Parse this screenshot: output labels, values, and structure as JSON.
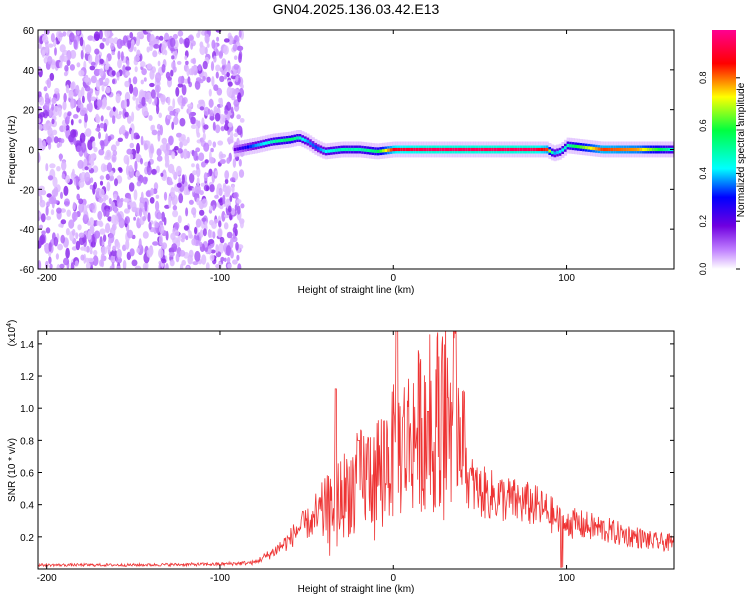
{
  "figure_title": "GN04.2025.136.03.42.E13",
  "chart_data": [
    {
      "type": "heatmap",
      "xlabel": "Height of straight line (km)",
      "ylabel": "Frequency (Hz)",
      "xlim": [
        -205,
        162
      ],
      "ylim": [
        -60,
        60
      ],
      "x_ticks": [
        -200,
        -100,
        0,
        100
      ],
      "x_tick_labels": [
        "-200",
        "-100",
        "0",
        "100"
      ],
      "y_ticks": [
        60,
        40,
        20,
        0,
        -20,
        -40,
        -60
      ],
      "y_tick_labels": [
        "60",
        "40",
        "20",
        "0",
        "-20",
        "-40",
        "-60"
      ],
      "colorbar": {
        "label": "Normalized spectral amplitude",
        "range": [
          0,
          1
        ],
        "ticks": [
          0.0,
          0.2,
          0.4,
          0.6,
          0.8
        ],
        "tick_labels": [
          "0.0",
          "0.2",
          "0.4",
          "0.6",
          "0.8"
        ],
        "colors": [
          "#ffffff",
          "#c080ff",
          "#7000e0",
          "#0000ff",
          "#00ffff",
          "#00ff40",
          "#ffff00",
          "#ff0000",
          "#ff0090"
        ]
      },
      "noise_region_x": [
        -205,
        -87
      ],
      "signal_band": {
        "x": [
          -92,
          -80,
          -70,
          -60,
          -55,
          -50,
          -45,
          -40,
          -30,
          -20,
          -10,
          0,
          20,
          40,
          60,
          80,
          88,
          92,
          96,
          100,
          120,
          140,
          162
        ],
        "f": [
          0,
          2,
          4,
          5,
          6,
          4,
          1,
          -1,
          0,
          0,
          -1,
          0,
          0,
          0,
          0,
          0,
          0,
          -2,
          -1,
          2,
          0,
          0,
          0
        ],
        "amplitude": [
          0.25,
          0.45,
          0.55,
          0.6,
          0.55,
          0.45,
          0.4,
          0.5,
          0.55,
          0.55,
          0.6,
          0.9,
          0.95,
          0.95,
          0.95,
          0.95,
          0.85,
          0.45,
          0.5,
          0.55,
          0.85,
          0.8,
          0.5
        ]
      }
    },
    {
      "type": "line",
      "xlabel": "Height of straight line (km)",
      "ylabel": "SNR (10 * v/v)",
      "y_scale_label": "(x10",
      "y_scale_exponent": "4",
      "y_scale_suffix": ")",
      "xlim": [
        -205,
        162
      ],
      "ylim": [
        0,
        1.48
      ],
      "x_ticks": [
        -200,
        -100,
        0,
        100
      ],
      "x_tick_labels": [
        "-200",
        "-100",
        "0",
        "100"
      ],
      "y_ticks": [
        0.2,
        0.4,
        0.6,
        0.8,
        1.0,
        1.2,
        1.4
      ],
      "y_tick_labels": [
        "0.2",
        "0.4",
        "0.6",
        "0.8",
        "1.0",
        "1.2",
        "1.4"
      ],
      "color": "#ee3333",
      "envelope": {
        "x": [
          -205,
          -150,
          -100,
          -80,
          -70,
          -60,
          -55,
          -50,
          -45,
          -40,
          -35,
          -30,
          -20,
          -10,
          0,
          10,
          20,
          30,
          35,
          40,
          43,
          50,
          60,
          70,
          80,
          90,
          95,
          98,
          100,
          105,
          110,
          120,
          130,
          140,
          150,
          162
        ],
        "y": [
          0.025,
          0.025,
          0.03,
          0.04,
          0.1,
          0.18,
          0.25,
          0.28,
          0.3,
          0.35,
          0.4,
          0.45,
          0.55,
          0.62,
          0.72,
          0.82,
          0.92,
          0.98,
          1.0,
          0.97,
          0.55,
          0.48,
          0.45,
          0.42,
          0.4,
          0.35,
          0.3,
          0.28,
          0.3,
          0.28,
          0.27,
          0.25,
          0.22,
          0.2,
          0.17,
          0.16
        ]
      },
      "spikes": [
        {
          "x": -33,
          "y": 1.12
        },
        {
          "x": 2,
          "y": 1.48
        },
        {
          "x": 20,
          "y": 0.98
        },
        {
          "x": -20,
          "y": 0.8
        }
      ]
    }
  ]
}
